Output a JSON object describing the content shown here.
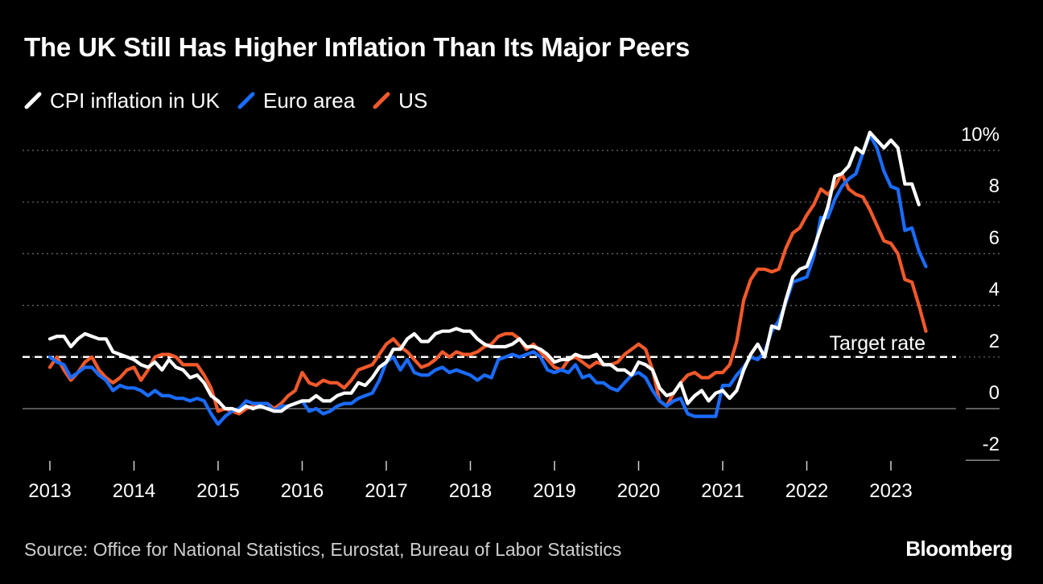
{
  "chart_data": {
    "type": "line",
    "title": "The UK Still Has Higher Inflation Than Its Major Peers",
    "y_unit": "%",
    "ylim": [
      -2,
      10
    ],
    "y_ticks": [
      10,
      8,
      6,
      4,
      2,
      0,
      -2
    ],
    "y_tick_labels": [
      "10%",
      "8",
      "6",
      "4",
      "2",
      "0",
      "-2"
    ],
    "x_ticks": [
      2013,
      2014,
      2015,
      2016,
      2017,
      2018,
      2019,
      2020,
      2021,
      2022,
      2023
    ],
    "x_tick_labels": [
      "2013",
      "2014",
      "2015",
      "2016",
      "2017",
      "2018",
      "2019",
      "2020",
      "2021",
      "2022",
      "2023"
    ],
    "target": {
      "value": 2,
      "label": "Target rate"
    },
    "series": [
      {
        "name": "CPI inflation in UK",
        "color": "#ffffff",
        "start": 2013.0,
        "step": 0.083333,
        "values": [
          2.7,
          2.8,
          2.8,
          2.4,
          2.7,
          2.9,
          2.8,
          2.7,
          2.7,
          2.2,
          2.1,
          2.0,
          1.9,
          1.7,
          1.6,
          1.8,
          1.5,
          1.9,
          1.6,
          1.5,
          1.2,
          1.3,
          1.0,
          0.5,
          0.3,
          0.0,
          0.0,
          -0.1,
          0.1,
          0.0,
          0.1,
          0.0,
          -0.1,
          -0.1,
          0.1,
          0.2,
          0.3,
          0.3,
          0.5,
          0.3,
          0.3,
          0.5,
          0.6,
          0.6,
          1.0,
          0.9,
          1.2,
          1.6,
          1.8,
          2.3,
          2.3,
          2.7,
          2.9,
          2.6,
          2.6,
          2.9,
          3.0,
          3.0,
          3.1,
          3.0,
          3.0,
          2.7,
          2.5,
          2.4,
          2.4,
          2.4,
          2.5,
          2.7,
          2.4,
          2.4,
          2.3,
          2.1,
          1.8,
          1.9,
          1.9,
          2.1,
          2.0,
          2.0,
          2.1,
          1.7,
          1.7,
          1.5,
          1.5,
          1.3,
          1.8,
          1.7,
          1.5,
          0.8,
          0.5,
          0.6,
          1.0,
          0.2,
          0.5,
          0.7,
          0.3,
          0.6,
          0.7,
          0.4,
          0.7,
          1.5,
          2.1,
          2.5,
          2.0,
          3.2,
          3.1,
          4.2,
          5.1,
          5.4,
          5.5,
          6.2,
          7.0,
          7.8,
          9.0,
          9.1,
          9.4,
          10.1,
          9.9,
          10.7,
          10.4,
          10.1,
          10.4,
          10.1,
          8.7,
          8.7,
          7.9
        ]
      },
      {
        "name": "Euro area",
        "color": "#1a6cff",
        "start": 2013.0,
        "step": 0.083333,
        "values": [
          2.0,
          1.8,
          1.7,
          1.2,
          1.4,
          1.6,
          1.6,
          1.3,
          1.1,
          0.7,
          0.9,
          0.8,
          0.8,
          0.7,
          0.5,
          0.7,
          0.5,
          0.5,
          0.4,
          0.4,
          0.3,
          0.4,
          0.3,
          -0.2,
          -0.6,
          -0.3,
          -0.1,
          0.0,
          0.3,
          0.2,
          0.2,
          0.2,
          -0.1,
          0.1,
          0.1,
          0.2,
          0.3,
          -0.1,
          0.0,
          -0.2,
          -0.1,
          0.1,
          0.2,
          0.2,
          0.4,
          0.5,
          0.6,
          1.1,
          1.8,
          2.0,
          1.5,
          1.9,
          1.4,
          1.3,
          1.3,
          1.5,
          1.6,
          1.4,
          1.5,
          1.4,
          1.3,
          1.1,
          1.3,
          1.2,
          1.9,
          2.0,
          2.1,
          2.0,
          2.1,
          2.2,
          2.0,
          1.5,
          1.4,
          1.5,
          1.4,
          1.7,
          1.2,
          1.3,
          1.0,
          1.0,
          0.8,
          0.7,
          1.0,
          1.3,
          1.4,
          1.2,
          0.7,
          0.3,
          0.1,
          0.3,
          0.4,
          -0.2,
          -0.3,
          -0.3,
          -0.3,
          -0.3,
          0.9,
          0.9,
          1.3,
          1.6,
          2.0,
          1.9,
          2.2,
          3.0,
          3.4,
          4.1,
          4.9,
          5.0,
          5.1,
          5.9,
          7.4,
          7.4,
          8.1,
          8.6,
          8.9,
          9.1,
          9.9,
          10.6,
          10.1,
          9.2,
          8.6,
          8.5,
          6.9,
          7.0,
          6.1,
          5.5
        ]
      },
      {
        "name": "US",
        "color": "#f2592a",
        "start": 2013.0,
        "step": 0.083333,
        "values": [
          1.6,
          2.0,
          1.5,
          1.1,
          1.4,
          1.8,
          2.0,
          1.5,
          1.2,
          1.0,
          1.2,
          1.5,
          1.6,
          1.1,
          1.5,
          2.0,
          2.1,
          2.1,
          2.0,
          1.7,
          1.7,
          1.7,
          1.3,
          0.8,
          -0.1,
          0.0,
          -0.1,
          -0.2,
          0.0,
          0.1,
          0.2,
          0.2,
          0.0,
          0.2,
          0.5,
          0.7,
          1.4,
          1.0,
          0.9,
          1.1,
          1.0,
          1.0,
          0.8,
          1.1,
          1.5,
          1.6,
          1.7,
          2.1,
          2.5,
          2.7,
          2.4,
          2.2,
          1.9,
          1.6,
          1.7,
          1.9,
          2.2,
          2.0,
          2.2,
          2.1,
          2.1,
          2.2,
          2.4,
          2.5,
          2.8,
          2.9,
          2.9,
          2.7,
          2.3,
          2.5,
          2.2,
          1.9,
          1.6,
          1.5,
          1.9,
          2.0,
          1.8,
          1.6,
          1.8,
          1.7,
          1.7,
          1.8,
          2.1,
          2.3,
          2.5,
          2.3,
          1.5,
          0.3,
          0.1,
          0.6,
          1.0,
          1.3,
          1.4,
          1.2,
          1.2,
          1.4,
          1.4,
          1.7,
          2.6,
          4.2,
          5.0,
          5.4,
          5.4,
          5.3,
          5.4,
          6.2,
          6.8,
          7.0,
          7.5,
          7.9,
          8.5,
          8.3,
          8.6,
          9.1,
          8.5,
          8.3,
          8.2,
          7.7,
          7.1,
          6.5,
          6.4,
          6.0,
          5.0,
          4.9,
          4.0,
          3.0
        ]
      }
    ]
  },
  "legend": [
    "CPI inflation in UK",
    "Euro area",
    "US"
  ],
  "source": "Source: Office for National Statistics, Eurostat, Bureau of Labor Statistics",
  "brand": "Bloomberg"
}
